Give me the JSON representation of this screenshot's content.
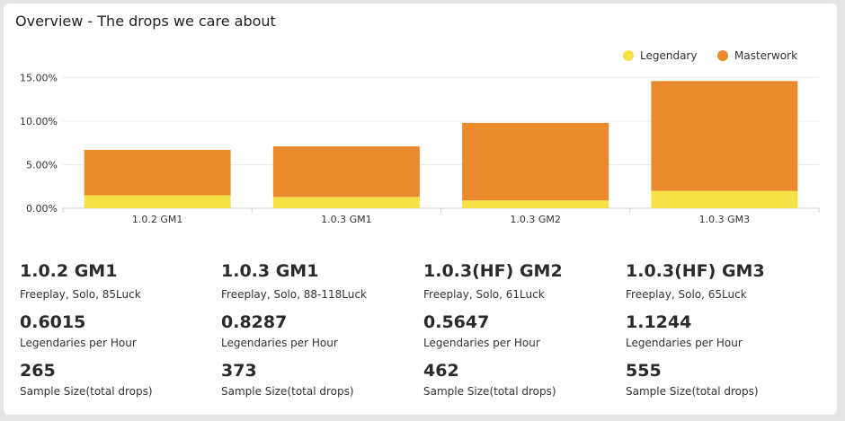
{
  "panel": {
    "title": "Overview - The drops we care about"
  },
  "chart_data": {
    "type": "bar",
    "stacked": true,
    "categories": [
      "1.0.2 GM1",
      "1.0.3 GM1",
      "1.0.3 GM2",
      "1.0.3 GM3"
    ],
    "series": [
      {
        "name": "Legendary",
        "values": [
          1.5,
          1.3,
          0.9,
          2.0
        ],
        "color": "#f5e246"
      },
      {
        "name": "Masterwork",
        "values": [
          5.2,
          5.8,
          8.9,
          12.6
        ],
        "color": "#ea8a2c"
      }
    ],
    "yticks": [
      "0.00%",
      "5.00%",
      "10.00%",
      "15.00%"
    ],
    "ylim": [
      0,
      17
    ],
    "grid": true,
    "legend_position": "top-right"
  },
  "stats": [
    {
      "title": "1.0.2 GM1",
      "subtitle": "Freeplay, Solo, 85Luck",
      "legendaries_per_hour": "0.6015",
      "legendaries_label": "Legendaries per Hour",
      "sample_size": "265",
      "sample_label": "Sample Size(total drops)"
    },
    {
      "title": "1.0.3 GM1",
      "subtitle": "Freeplay, Solo, 88-118Luck",
      "legendaries_per_hour": "0.8287",
      "legendaries_label": "Legendaries per Hour",
      "sample_size": "373",
      "sample_label": "Sample Size(total drops)"
    },
    {
      "title": "1.0.3(HF) GM2",
      "subtitle": "Freeplay, Solo, 61Luck",
      "legendaries_per_hour": "0.5647",
      "legendaries_label": "Legendaries per Hour",
      "sample_size": "462",
      "sample_label": "Sample Size(total drops)"
    },
    {
      "title": "1.0.3(HF) GM3",
      "subtitle": "Freeplay, Solo, 65Luck",
      "legendaries_per_hour": "1.1244",
      "legendaries_label": "Legendaries per Hour",
      "sample_size": "555",
      "sample_label": "Sample Size(total drops)"
    }
  ]
}
